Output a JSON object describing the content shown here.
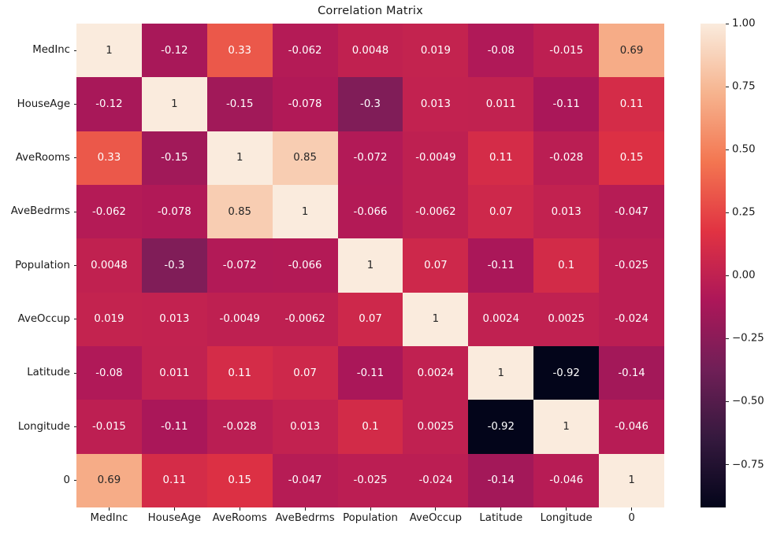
{
  "title": "Correlation Matrix",
  "colors": {
    "background": "#ffffff",
    "annot_dark": "#262626",
    "annot_light": "#ffffff",
    "tick_color": "#1a1a1a"
  },
  "chart_data": {
    "type": "heatmap",
    "title": "Correlation Matrix",
    "x_labels": [
      "MedInc",
      "HouseAge",
      "AveRooms",
      "AveBedrms",
      "Population",
      "AveOccup",
      "Latitude",
      "Longitude",
      "0"
    ],
    "y_labels": [
      "MedInc",
      "HouseAge",
      "AveRooms",
      "AveBedrms",
      "Population",
      "AveOccup",
      "Latitude",
      "Longitude",
      "0"
    ],
    "matrix": [
      [
        "1",
        "-0.12",
        "0.33",
        "-0.062",
        "0.0048",
        "0.019",
        "-0.08",
        "-0.015",
        "0.69"
      ],
      [
        "-0.12",
        "1",
        "-0.15",
        "-0.078",
        "-0.3",
        "0.013",
        "0.011",
        "-0.11",
        "0.11"
      ],
      [
        "0.33",
        "-0.15",
        "1",
        "0.85",
        "-0.072",
        "-0.0049",
        "0.11",
        "-0.028",
        "0.15"
      ],
      [
        "-0.062",
        "-0.078",
        "0.85",
        "1",
        "-0.066",
        "-0.0062",
        "0.07",
        "0.013",
        "-0.047"
      ],
      [
        "0.0048",
        "-0.3",
        "-0.072",
        "-0.066",
        "1",
        "0.07",
        "-0.11",
        "0.1",
        "-0.025"
      ],
      [
        "0.019",
        "0.013",
        "-0.0049",
        "-0.0062",
        "0.07",
        "1",
        "0.0024",
        "0.0025",
        "-0.024"
      ],
      [
        "-0.08",
        "0.011",
        "0.11",
        "0.07",
        "-0.11",
        "0.0024",
        "1",
        "-0.92",
        "-0.14"
      ],
      [
        "-0.015",
        "-0.11",
        "-0.028",
        "0.013",
        "0.1",
        "0.0025",
        "-0.92",
        "1",
        "-0.046"
      ],
      [
        "0.69",
        "0.11",
        "0.15",
        "-0.047",
        "-0.025",
        "-0.024",
        "-0.14",
        "-0.046",
        "1"
      ]
    ],
    "vmin": -0.92,
    "vmax": 1.0,
    "colormap": "rocket",
    "colormap_anchors": [
      {
        "p": 0.0,
        "color": "#03051A"
      },
      {
        "p": 0.1429,
        "color": "#35193E"
      },
      {
        "p": 0.2857,
        "color": "#701F57"
      },
      {
        "p": 0.4286,
        "color": "#AD1759"
      },
      {
        "p": 0.5714,
        "color": "#E13342"
      },
      {
        "p": 0.7143,
        "color": "#F37651"
      },
      {
        "p": 0.8571,
        "color": "#F6B48F"
      },
      {
        "p": 1.0,
        "color": "#FAEBDD"
      }
    ],
    "legend_position": "right",
    "grid": false,
    "colorbar": {
      "ticks": [
        {
          "label": "1.00",
          "value": 1.0
        },
        {
          "label": "0.75",
          "value": 0.75
        },
        {
          "label": "0.50",
          "value": 0.5
        },
        {
          "label": "0.25",
          "value": 0.25
        },
        {
          "label": "0.00",
          "value": 0.0
        },
        {
          "label": "−0.25",
          "value": -0.25
        },
        {
          "label": "−0.50",
          "value": -0.5
        },
        {
          "label": "−0.75",
          "value": -0.75
        }
      ]
    }
  }
}
